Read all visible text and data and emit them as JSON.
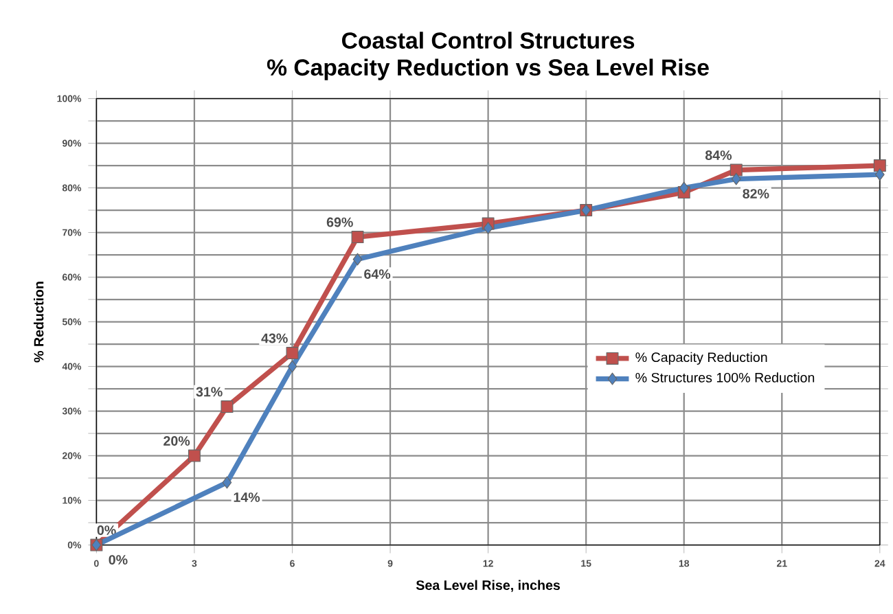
{
  "chart_data": {
    "type": "line",
    "title": "Coastal Control Structures",
    "subtitle": "% Capacity Reduction vs Sea Level Rise",
    "xlabel": "Sea Level Rise, inches",
    "ylabel": "% Reduction",
    "xlim": [
      0,
      24
    ],
    "xticks": [
      0,
      3,
      6,
      9,
      12,
      15,
      18,
      21,
      24
    ],
    "ylim": [
      0,
      100
    ],
    "yticks": [
      {
        "value": 0,
        "label": "0%"
      },
      {
        "value": 5,
        "label": null
      },
      {
        "value": 10,
        "label": "10%"
      },
      {
        "value": 15,
        "label": null
      },
      {
        "value": 20,
        "label": "20%"
      },
      {
        "value": 25,
        "label": null
      },
      {
        "value": 30,
        "label": "30%"
      },
      {
        "value": 35,
        "label": null
      },
      {
        "value": 40,
        "label": "40%"
      },
      {
        "value": 45,
        "label": null
      },
      {
        "value": 50,
        "label": "50%"
      },
      {
        "value": 55,
        "label": null
      },
      {
        "value": 60,
        "label": "60%"
      },
      {
        "value": 65,
        "label": null
      },
      {
        "value": 70,
        "label": "70%"
      },
      {
        "value": 75,
        "label": null
      },
      {
        "value": 80,
        "label": "80%"
      },
      {
        "value": 85,
        "label": null
      },
      {
        "value": 90,
        "label": "90%"
      },
      {
        "value": 95,
        "label": null
      },
      {
        "value": 100,
        "label": "100%"
      }
    ],
    "grid": true,
    "legend": "right",
    "series": [
      {
        "name": "% Capacity Reduction",
        "color": "#c0504d",
        "marker": "square",
        "x": [
          0,
          3,
          4,
          6,
          8,
          12,
          15,
          18,
          19.6,
          24
        ],
        "values": [
          0,
          20,
          31,
          43,
          69,
          72,
          75,
          79,
          84,
          85
        ],
        "value_labels": [
          "0%",
          "20%",
          "31%",
          "43%",
          "69%",
          null,
          null,
          null,
          "84%",
          null
        ]
      },
      {
        "name": "% Structures 100% Reduction",
        "color": "#4f81bd",
        "marker": "diamond",
        "x": [
          0,
          4,
          6,
          8,
          12,
          15,
          18,
          19.6,
          24
        ],
        "values": [
          0,
          14,
          40,
          64,
          71,
          75,
          80,
          82,
          83
        ],
        "value_labels": [
          "0%",
          "14%",
          null,
          "64%",
          null,
          null,
          null,
          "82%",
          null
        ]
      }
    ]
  }
}
